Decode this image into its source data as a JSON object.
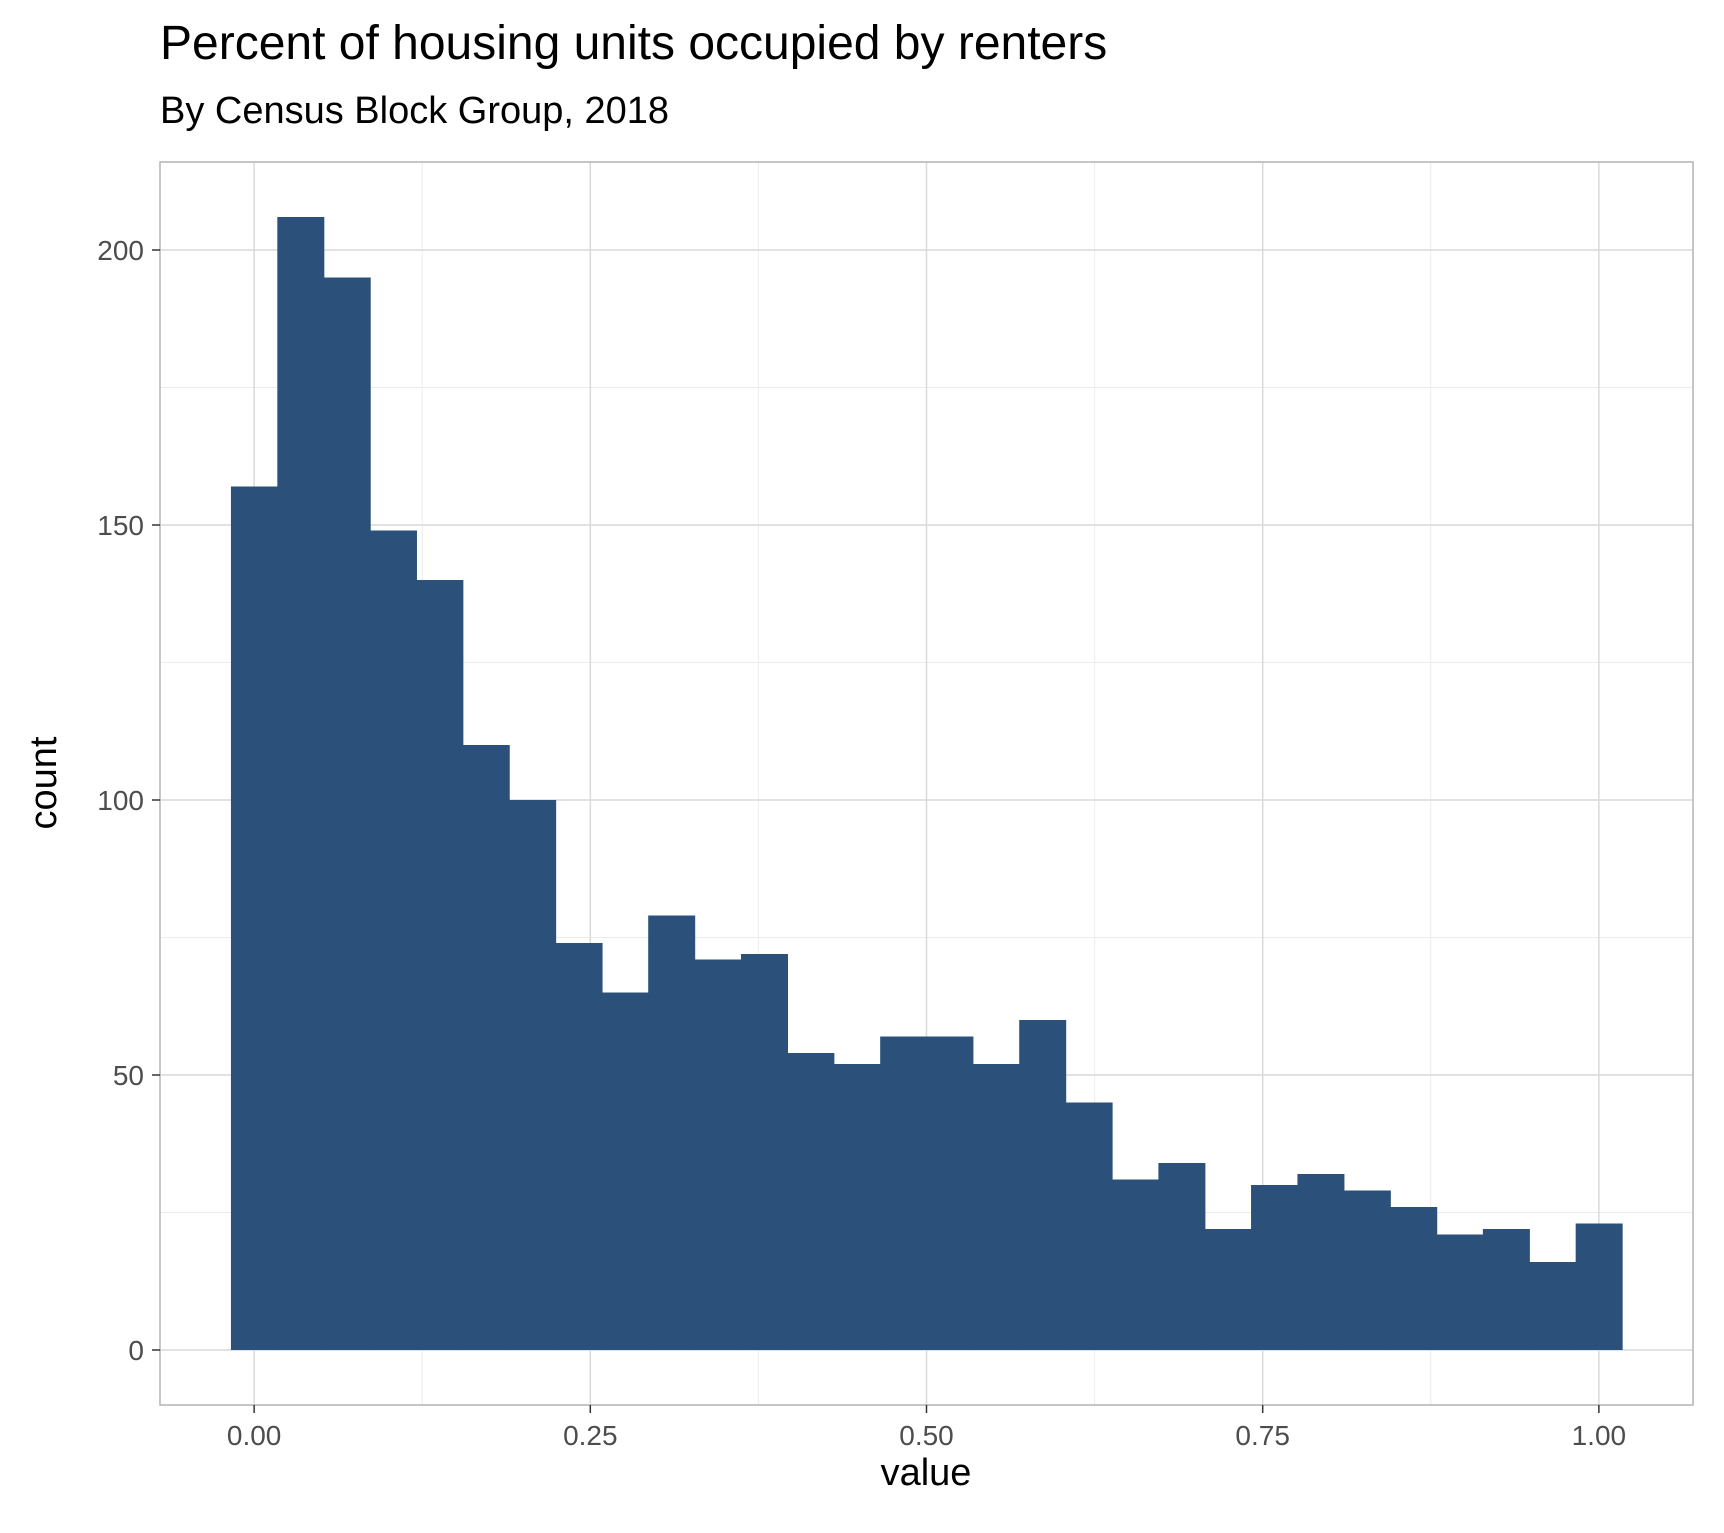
{
  "title": "Percent of housing units occupied by renters",
  "subtitle": "By Census Block Group, 2018",
  "colors": {
    "bar": "#2b5079",
    "grid_major": "#d9d9d9",
    "grid_minor": "#ececec",
    "panel_border": "#b3b3b3"
  },
  "chart_data": {
    "type": "bar",
    "title": "Percent of housing units occupied by renters",
    "subtitle": "By Census Block Group, 2018",
    "xlabel": "value",
    "ylabel": "count",
    "xlim": [
      -0.07,
      1.07
    ],
    "ylim": [
      -10,
      216
    ],
    "grid": true,
    "legend": "none",
    "x_ticks": [
      0,
      0.25,
      0.5,
      0.75,
      1
    ],
    "x_tick_labels": [
      "0.00",
      "0.25",
      "0.50",
      "0.75",
      "1.00"
    ],
    "y_ticks": [
      0,
      50,
      100,
      150,
      200
    ],
    "y_tick_labels": [
      "0",
      "50",
      "100",
      "150",
      "200"
    ],
    "bin_width": 0.0345,
    "bin_centers": [
      0,
      0.0345,
      0.069,
      0.1034,
      0.1379,
      0.1724,
      0.2069,
      0.2414,
      0.2759,
      0.3103,
      0.3448,
      0.3793,
      0.4138,
      0.4483,
      0.4828,
      0.5172,
      0.5517,
      0.5862,
      0.6207,
      0.6552,
      0.6897,
      0.7241,
      0.7586,
      0.7931,
      0.8276,
      0.8621,
      0.8966,
      0.931,
      0.9655,
      1.0
    ],
    "values": [
      157,
      206,
      195,
      149,
      140,
      110,
      100,
      74,
      65,
      79,
      71,
      72,
      54,
      52,
      57,
      57,
      52,
      60,
      45,
      31,
      34,
      22,
      30,
      32,
      29,
      26,
      21,
      22,
      16,
      23
    ]
  }
}
